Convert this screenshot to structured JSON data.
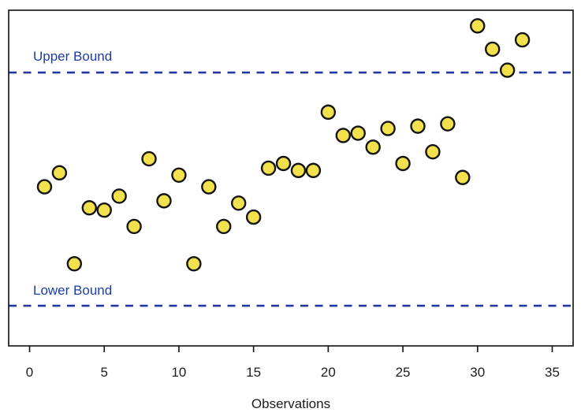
{
  "colors": {
    "background": "#FFFFFF",
    "point_fill": "#F2E14C",
    "point_stroke": "#151515",
    "bound_line": "#2236A4",
    "bound_text": "#1E3CA8",
    "axis": "#1C1C1C",
    "tick_text": "#1C1C1C"
  },
  "chart_data": {
    "type": "scatter",
    "title": "",
    "xlabel": "Observations",
    "ylabel": "",
    "marker": "circle",
    "grid": false,
    "legend": false,
    "x": [
      1,
      2,
      3,
      4,
      5,
      6,
      7,
      8,
      9,
      10,
      11,
      12,
      13,
      14,
      15,
      16,
      17,
      18,
      19,
      20,
      21,
      22,
      23,
      24,
      25,
      26,
      27,
      28,
      29,
      30,
      31,
      32,
      33
    ],
    "y": [
      0.51,
      0.57,
      0.18,
      0.42,
      0.41,
      0.47,
      0.34,
      0.63,
      0.45,
      0.56,
      0.18,
      0.51,
      0.34,
      0.44,
      0.38,
      0.59,
      0.61,
      0.58,
      0.58,
      0.83,
      0.73,
      0.74,
      0.68,
      0.76,
      0.61,
      0.77,
      0.66,
      0.78,
      0.55,
      1.2,
      1.1,
      1.01,
      1.14
    ],
    "x_ticks": [
      0,
      5,
      10,
      15,
      20,
      25,
      30,
      35
    ],
    "xlim": [
      -1.4,
      36.4
    ],
    "ylim": [
      -0.172,
      1.267
    ],
    "upper_bound": 1.0,
    "lower_bound": 0.0,
    "value_scale": "no y-axis labels shown; point values normalized so lower bound = 0 and upper bound = 1",
    "annotations": {
      "upper_label": "Upper Bound",
      "lower_label": "Lower Bound"
    }
  }
}
